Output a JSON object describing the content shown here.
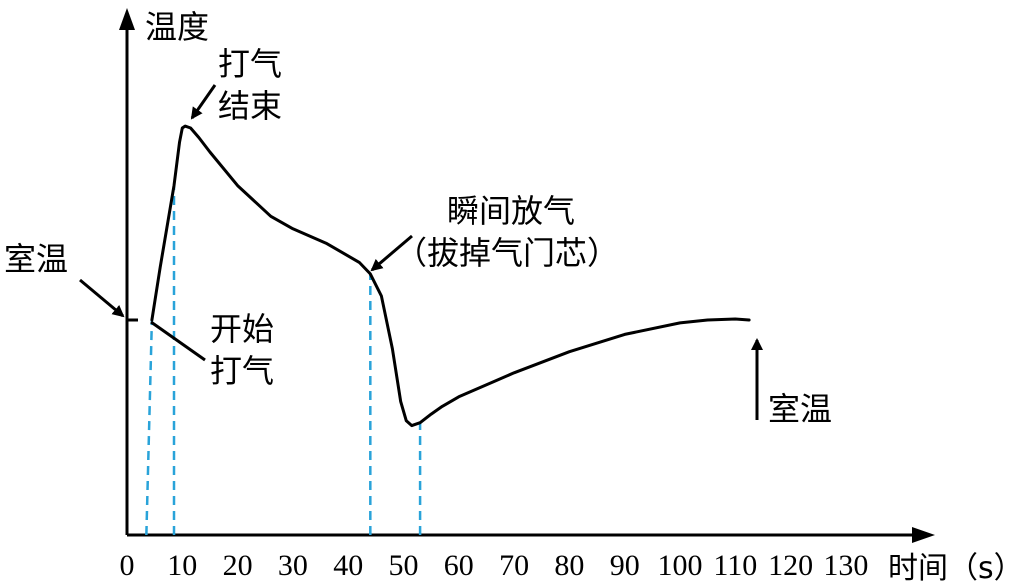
{
  "chart_data": {
    "type": "line",
    "title": "",
    "xlabel": "时间（s）",
    "ylabel": "温度",
    "x_ticks": [
      "0",
      "10",
      "20",
      "30",
      "40",
      "50",
      "60",
      "70",
      "80",
      "90",
      "100",
      "110",
      "120",
      "130"
    ],
    "xlim": [
      0,
      140
    ],
    "grid": false,
    "series": [
      {
        "x": [
          4.5,
          6,
          8.5,
          9.5,
          10,
          10.5,
          11.5,
          13,
          15,
          20,
          26,
          30,
          36,
          42,
          44,
          46,
          48,
          49.5,
          50.5,
          51.5,
          53,
          55,
          57,
          60,
          70,
          80,
          90,
          100,
          105,
          110,
          112.5
        ],
        "y": [
          0,
          0.55,
          1.4,
          1.85,
          2.0,
          2.02,
          2.0,
          1.9,
          1.75,
          1.4,
          1.08,
          0.95,
          0.8,
          0.6,
          0.48,
          0.25,
          -0.3,
          -0.85,
          -1.05,
          -1.1,
          -1.07,
          -0.98,
          -0.9,
          -0.8,
          -0.55,
          -0.33,
          -0.15,
          -0.03,
          0.0,
          0.01,
          0.0
        ]
      }
    ],
    "reference_lines_x": [
      3.5,
      8.5,
      44,
      53
    ],
    "annotations": [
      {
        "text": "室温",
        "x": 0,
        "y": 0
      },
      {
        "text": "开始打气",
        "x": 4.5,
        "y": 0
      },
      {
        "text": "打气结束",
        "x": 10.5,
        "y": 2.02
      },
      {
        "text": "瞬间放气（拔掉气门芯）",
        "x": 44,
        "y": 0.48
      },
      {
        "text": "室温",
        "x": 112.5,
        "y": 0
      }
    ]
  },
  "labels": {
    "ylabel": "温度",
    "xlabel": "时间（s）",
    "room_temp_left": "室温",
    "start_line1": "开始",
    "start_line2": "打气",
    "end_line1": "打气",
    "end_line2": "结束",
    "release_line1": "瞬间放气",
    "release_line2": "（拔掉气门芯）",
    "room_temp_right": "室温"
  },
  "colors": {
    "curve": "#000000",
    "axis": "#000000",
    "reference": "#29a3d9"
  }
}
